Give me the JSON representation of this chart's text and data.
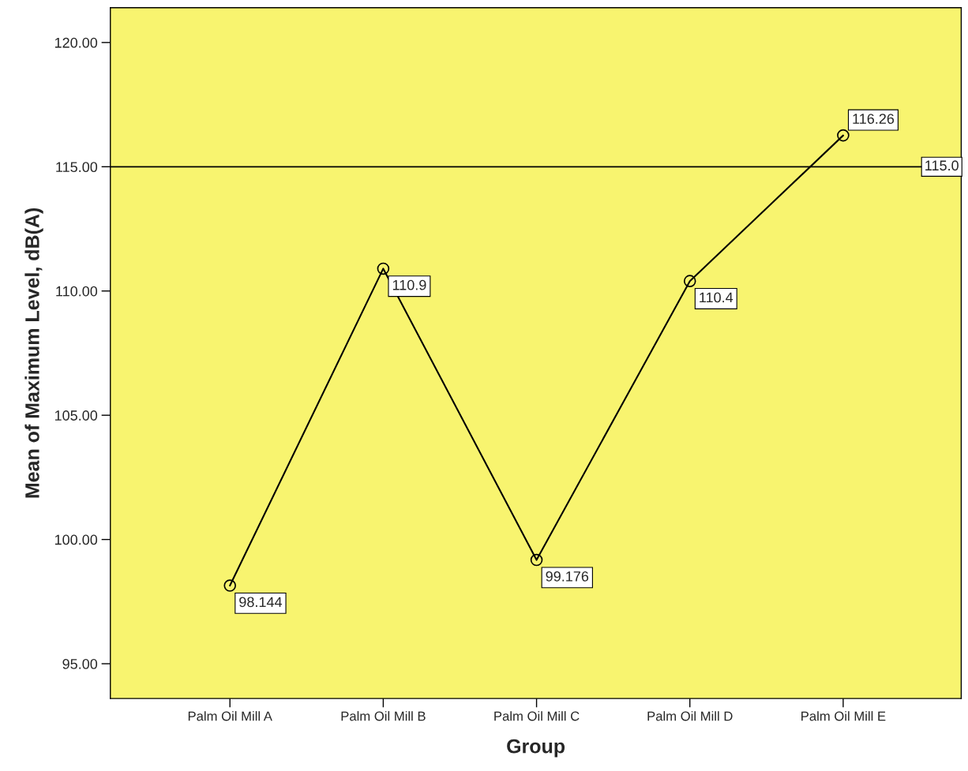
{
  "chart_data": {
    "type": "line",
    "xlabel": "Group",
    "ylabel": "Mean of Maximum Level, dB(A)",
    "categories": [
      "Palm Oil Mill A",
      "Palm Oil Mill B",
      "Palm Oil Mill C",
      "Palm Oil Mill D",
      "Palm Oil Mill E"
    ],
    "series": [
      {
        "color": "#000000",
        "values": [
          98.144,
          110.9,
          99.176,
          110.4,
          116.26
        ]
      }
    ],
    "marker": "circle",
    "line_style": "solid",
    "data_labels": true,
    "grid": false,
    "legend": false,
    "ylim": [
      93.6,
      121.4
    ],
    "yticks": [
      {
        "value": 95,
        "label": "95.00"
      },
      {
        "value": 100,
        "label": "100.00"
      },
      {
        "value": 105,
        "label": "105.00"
      },
      {
        "value": 110,
        "label": "110.00"
      },
      {
        "value": 115,
        "label": "115.00"
      },
      {
        "value": 120,
        "label": "120.00"
      }
    ],
    "ref_lines": [
      {
        "axis": "y",
        "value": 115,
        "label": "115.0",
        "color": "#000000"
      }
    ]
  }
}
